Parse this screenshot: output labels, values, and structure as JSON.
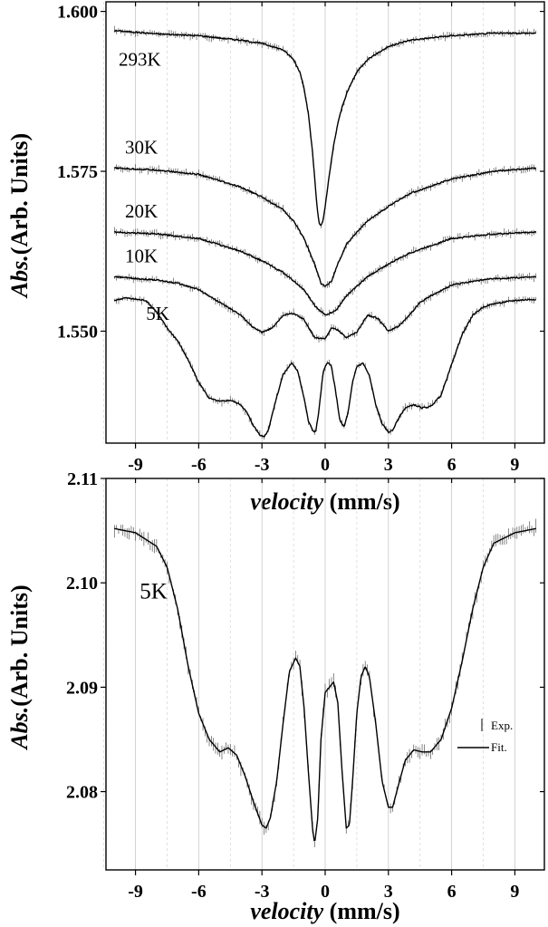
{
  "chart_data": [
    {
      "type": "line",
      "xlabel_italic": "velocity",
      "xlabel_unit": "(mm/s)",
      "ylabel_italic": "Abs.",
      "ylabel_unit": "(Arb. Units)",
      "xlim": [
        -10.4,
        10.4
      ],
      "ylim": [
        1.5325,
        1.6015
      ],
      "xticks": [
        -9,
        -6,
        -3,
        0,
        3,
        6,
        9
      ],
      "yticks": [
        1.55,
        1.575,
        1.6
      ],
      "ytick_labels": [
        "1.550",
        "1.575",
        "1.600"
      ],
      "grid": "vertical",
      "error_bars": true,
      "series": [
        {
          "name": "293K",
          "label_at": [
            -9.8,
            1.5915
          ],
          "x": [
            -10,
            -8,
            -6,
            -4,
            -3,
            -2,
            -1.5,
            -1.2,
            -1,
            -0.8,
            -0.6,
            -0.5,
            -0.4,
            -0.3,
            -0.2,
            -0.1,
            0,
            0.2,
            0.4,
            0.6,
            0.8,
            1,
            1.2,
            1.5,
            2,
            3,
            4,
            6,
            8,
            10
          ],
          "values": [
            1.597,
            1.5965,
            1.5962,
            1.5955,
            1.595,
            1.594,
            1.5925,
            1.5905,
            1.588,
            1.584,
            1.578,
            1.574,
            1.57,
            1.567,
            1.5665,
            1.5672,
            1.5695,
            1.5745,
            1.579,
            1.5825,
            1.585,
            1.587,
            1.5885,
            1.5905,
            1.5925,
            1.5945,
            1.5955,
            1.5962,
            1.5966,
            1.5966
          ]
        },
        {
          "name": "30K",
          "label_at": [
            -9.5,
            1.5778
          ],
          "x": [
            -10,
            -8,
            -6,
            -4,
            -3,
            -2,
            -1.5,
            -1,
            -0.5,
            -0.2,
            0,
            0.3,
            0.6,
            1,
            1.5,
            2,
            3,
            4,
            6,
            8,
            10
          ],
          "values": [
            1.5755,
            1.5752,
            1.5745,
            1.5725,
            1.571,
            1.569,
            1.5672,
            1.5645,
            1.5605,
            1.5575,
            1.557,
            1.5578,
            1.5605,
            1.5635,
            1.5655,
            1.5672,
            1.5695,
            1.5715,
            1.5738,
            1.575,
            1.5755
          ]
        },
        {
          "name": "20K",
          "label_at": [
            -9.5,
            1.5678
          ],
          "x": [
            -10,
            -8,
            -6,
            -4,
            -3,
            -2,
            -1,
            -0.5,
            0,
            0.5,
            1,
            2,
            3,
            4,
            6,
            8,
            10
          ],
          "values": [
            1.5655,
            1.5652,
            1.5645,
            1.5625,
            1.561,
            1.5592,
            1.5565,
            1.554,
            1.5525,
            1.5532,
            1.5555,
            1.5585,
            1.5605,
            1.5622,
            1.5645,
            1.5652,
            1.5655
          ]
        },
        {
          "name": "10K",
          "label_at": [
            -9.5,
            1.5608
          ],
          "x": [
            -10,
            -8,
            -7,
            -6,
            -5,
            -4,
            -3.5,
            -3,
            -2.5,
            -2,
            -1.5,
            -1,
            -0.5,
            0,
            0.3,
            0.6,
            1,
            1.5,
            2,
            2.5,
            3,
            3.5,
            4,
            4.5,
            5,
            6,
            7,
            8,
            10
          ],
          "values": [
            1.5585,
            1.558,
            1.5575,
            1.5565,
            1.5545,
            1.5525,
            1.5508,
            1.5498,
            1.5505,
            1.5525,
            1.5528,
            1.5518,
            1.549,
            1.5488,
            1.5505,
            1.5502,
            1.549,
            1.5498,
            1.5525,
            1.552,
            1.55,
            1.5508,
            1.5525,
            1.5545,
            1.5555,
            1.5572,
            1.5578,
            1.5582,
            1.5585
          ]
        },
        {
          "name": "5K",
          "label_at": [
            -8.5,
            1.5518
          ],
          "x": [
            -10,
            -9.5,
            -8.5,
            -8,
            -7.5,
            -7,
            -6.5,
            -6,
            -5.5,
            -5,
            -4.5,
            -4,
            -3.7,
            -3.4,
            -3.1,
            -2.9,
            -2.7,
            -2.4,
            -2,
            -1.6,
            -1.3,
            -1,
            -0.8,
            -0.6,
            -0.45,
            -0.3,
            -0.1,
            0.1,
            0.3,
            0.5,
            0.7,
            0.9,
            1.1,
            1.3,
            1.5,
            1.8,
            2.1,
            2.4,
            2.7,
            3,
            3.2,
            3.5,
            3.8,
            4.2,
            4.6,
            5,
            5.5,
            6,
            6.5,
            7,
            7.5,
            8,
            9,
            10
          ],
          "values": [
            1.5548,
            1.5552,
            1.5548,
            1.553,
            1.5505,
            1.5485,
            1.5455,
            1.542,
            1.5395,
            1.539,
            1.5392,
            1.5385,
            1.5372,
            1.5352,
            1.5338,
            1.5335,
            1.5345,
            1.5385,
            1.5432,
            1.545,
            1.5438,
            1.5395,
            1.536,
            1.5345,
            1.5342,
            1.5375,
            1.5435,
            1.5452,
            1.5445,
            1.5405,
            1.536,
            1.535,
            1.5375,
            1.542,
            1.5445,
            1.545,
            1.543,
            1.5385,
            1.5355,
            1.5342,
            1.5345,
            1.5365,
            1.538,
            1.5385,
            1.538,
            1.5382,
            1.54,
            1.5448,
            1.5495,
            1.5525,
            1.5538,
            1.5543,
            1.5548,
            1.555
          ]
        }
      ]
    },
    {
      "type": "line",
      "xlabel_italic": "velocity",
      "xlabel_unit": "(mm/s)",
      "ylabel_italic": "Abs.",
      "ylabel_unit": "(Arb. Units)",
      "xlim": [
        -10.4,
        10.4
      ],
      "ylim": [
        2.0725,
        2.11
      ],
      "xticks": [
        -9,
        -6,
        -3,
        0,
        3,
        6,
        9
      ],
      "yticks": [
        2.08,
        2.09,
        2.1,
        2.11
      ],
      "ytick_labels": [
        "2.08",
        "2.09",
        "2.10",
        "2.11"
      ],
      "grid": "vertical",
      "error_bars": true,
      "annotation": "5K",
      "annotation_at": [
        -8.8,
        2.0985
      ],
      "legend": [
        {
          "symbol": "errorbar",
          "label": "Exp."
        },
        {
          "symbol": "line",
          "label": "Fit."
        }
      ],
      "legend_position": "right",
      "series": [
        {
          "name": "",
          "x": [
            -10,
            -9,
            -8,
            -7.5,
            -7,
            -6.5,
            -6,
            -5.5,
            -5,
            -4.6,
            -4.2,
            -3.8,
            -3.4,
            -3,
            -2.8,
            -2.6,
            -2.3,
            -2,
            -1.7,
            -1.4,
            -1.2,
            -1,
            -0.8,
            -0.6,
            -0.5,
            -0.35,
            -0.2,
            0,
            0.2,
            0.4,
            0.6,
            0.8,
            1,
            1.15,
            1.3,
            1.5,
            1.7,
            1.9,
            2.1,
            2.4,
            2.7,
            3,
            3.2,
            3.5,
            3.8,
            4.2,
            4.6,
            5,
            5.5,
            6,
            6.5,
            7,
            7.5,
            8,
            9,
            10
          ],
          "values": [
            2.1052,
            2.1048,
            2.1035,
            2.1015,
            2.0975,
            2.092,
            2.0875,
            2.085,
            2.0838,
            2.0842,
            2.0835,
            2.0815,
            2.079,
            2.0768,
            2.0765,
            2.0775,
            2.081,
            2.0865,
            2.0915,
            2.0928,
            2.092,
            2.088,
            2.082,
            2.0765,
            2.075,
            2.0775,
            2.085,
            2.0895,
            2.09,
            2.0905,
            2.0885,
            2.082,
            2.0765,
            2.0768,
            2.081,
            2.0875,
            2.091,
            2.092,
            2.091,
            2.0865,
            2.081,
            2.0785,
            2.0785,
            2.0808,
            2.083,
            2.084,
            2.0838,
            2.0838,
            2.085,
            2.088,
            2.0925,
            2.0975,
            2.1015,
            2.1038,
            2.1048,
            2.1052
          ]
        }
      ]
    }
  ]
}
